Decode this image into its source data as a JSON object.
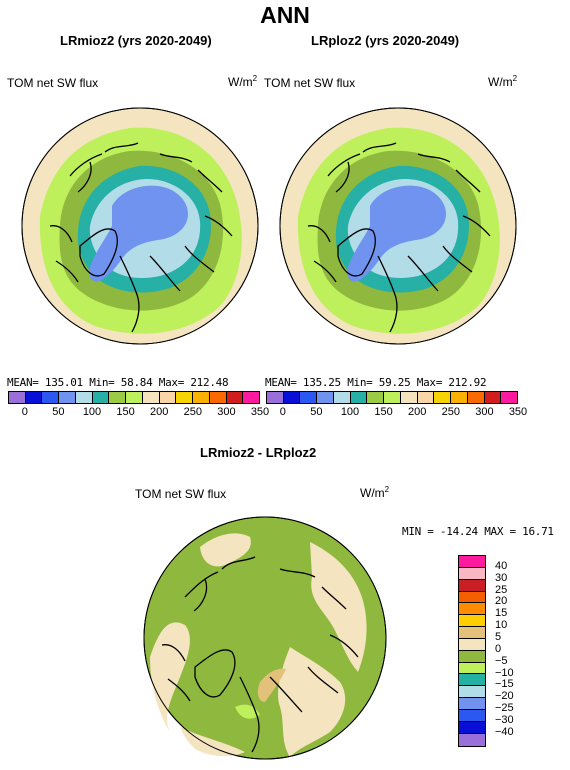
{
  "main_title": "ANN",
  "panels": [
    {
      "title": "LRmioz2 (yrs 2020-2049)",
      "field": "TOM net SW flux",
      "unit": "W/m",
      "unit_sup": "2",
      "stats": "MEAN= 135.01   Min=  58.84   Max= 212.48"
    },
    {
      "title": "LRploz2 (yrs 2020-2049)",
      "field": "TOM net SW flux",
      "unit": "W/m",
      "unit_sup": "2",
      "stats": "MEAN= 135.25   Min=  59.25   Max= 212.92"
    }
  ],
  "diff_panel": {
    "title": "LRmioz2 - LRploz2",
    "field": "TOM net SW flux",
    "unit": "W/m",
    "unit_sup": "2",
    "stats": "MIN = -14.24  MAX =  16.71"
  },
  "colorbar_abs": {
    "colors": [
      "#9a6fd9",
      "#0a0fd8",
      "#2a58f0",
      "#6f93ee",
      "#b2dde8",
      "#27b0a5",
      "#9ccc45",
      "#bdf05a",
      "#f5e3bd",
      "#f8d6a8",
      "#f5d400",
      "#fbb100",
      "#fb6a00",
      "#d21d1d",
      "#ff1aa0"
    ],
    "ticks": [
      "0",
      "50",
      "100",
      "150",
      "200",
      "250",
      "300",
      "350"
    ]
  },
  "colorbar_diff": {
    "colors": [
      "#ff1aa0",
      "#f9b7c4",
      "#c81f25",
      "#f45f00",
      "#ff8c00",
      "#ffce00",
      "#e3c17a",
      "#f4e4c0",
      "#8fb83e",
      "#bdf05a",
      "#25b0a4",
      "#b1dde8",
      "#6f93ee",
      "#2a58f0",
      "#0a0fd8",
      "#9a6fd9"
    ],
    "ticks": [
      "40",
      "30",
      "25",
      "20",
      "15",
      "10",
      "5",
      "0",
      "−5",
      "−10",
      "−15",
      "−20",
      "−25",
      "−30",
      "−40"
    ]
  },
  "map_colors": {
    "ocean_outer": "#f4e4c0",
    "green_dark": "#8fb83e",
    "green_light": "#bdf05a",
    "teal": "#27b0a5",
    "light_blue": "#b2dde8",
    "blue": "#6f93ee",
    "tan": "#e3c17a"
  }
}
